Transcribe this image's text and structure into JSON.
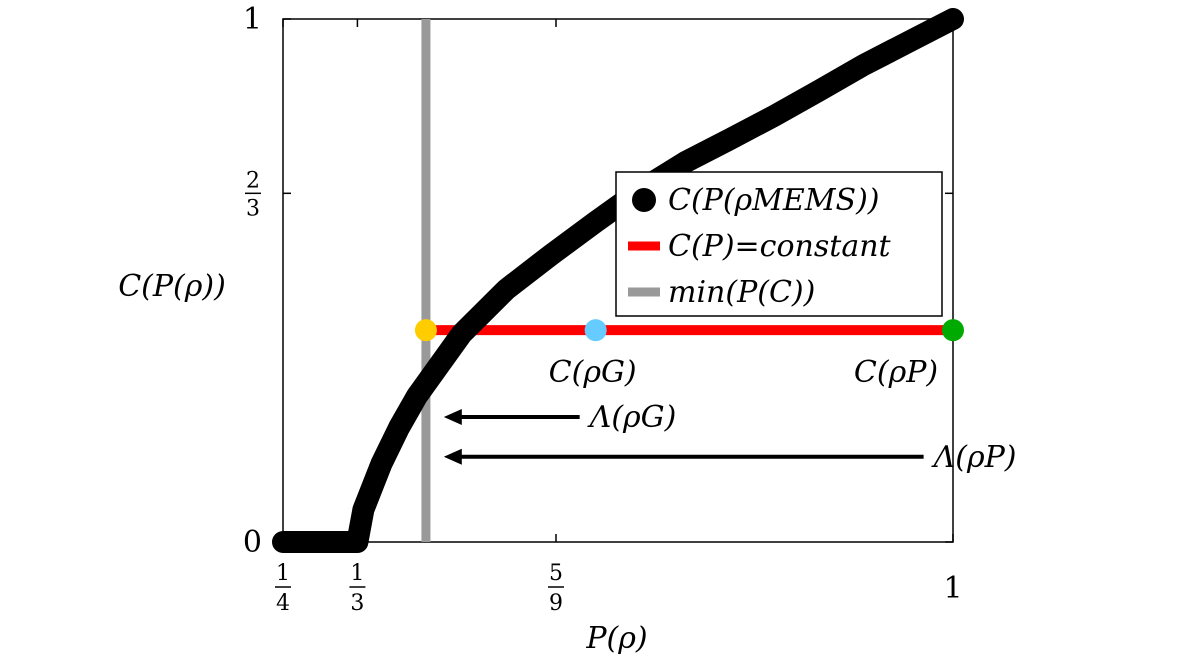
{
  "chart_data": {
    "type": "line",
    "xlim": [
      0.25,
      1
    ],
    "ylim": [
      0,
      1
    ],
    "xlabel": "P(ρ)",
    "ylabel": "C(P(ρ))",
    "x_ticks": [
      {
        "value": 0.25,
        "num": "1",
        "den": "4"
      },
      {
        "value": 0.3333,
        "num": "1",
        "den": "3"
      },
      {
        "value": 0.5556,
        "num": "5",
        "den": "9"
      },
      {
        "value": 1,
        "label": "1"
      }
    ],
    "y_ticks": [
      {
        "value": 0,
        "label": "0"
      },
      {
        "value": 0.6667,
        "num": "2",
        "den": "3"
      },
      {
        "value": 1,
        "label": "1"
      }
    ],
    "legend": {
      "position": "center-right",
      "entries": [
        {
          "label": "C(P(ρMEMS))",
          "style": "dot",
          "color": "#000000"
        },
        {
          "label": "C(P)=constant",
          "style": "line",
          "color": "#ff0000"
        },
        {
          "label": "min(P(C))",
          "style": "line",
          "color": "#999999"
        }
      ]
    },
    "series": [
      {
        "name": "C(P(ρMEMS))",
        "color": "#000000",
        "x": [
          0.25,
          0.3333,
          0.34,
          0.36,
          0.38,
          0.4,
          0.45,
          0.5,
          0.55,
          0.6,
          0.65,
          0.7,
          0.75,
          0.8,
          0.85,
          0.9,
          0.95,
          1.0
        ],
        "y": [
          0,
          0,
          0.062,
          0.149,
          0.219,
          0.279,
          0.398,
          0.483,
          0.549,
          0.612,
          0.673,
          0.726,
          0.77,
          0.815,
          0.863,
          0.912,
          0.956,
          1.0
        ]
      },
      {
        "name": "C(P)=constant",
        "color": "#ff0000",
        "x": [
          0.41,
          1.0
        ],
        "y": [
          0.405,
          0.405
        ]
      },
      {
        "name": "min(P(C))",
        "color": "#999999",
        "x_constant": 0.41
      }
    ],
    "markers": [
      {
        "x": 0.41,
        "y": 0.405,
        "color": "#ffcc00"
      },
      {
        "x": 0.6,
        "y": 0.405,
        "color": "#66ccff",
        "label": "C(ρG)"
      },
      {
        "x": 1.0,
        "y": 0.405,
        "color": "#00aa00",
        "label": "C(ρP)"
      }
    ],
    "arrows": [
      {
        "label": "Λ(ρG)",
        "y": 0.239,
        "x_from": 0.6,
        "x_to": 0.43
      },
      {
        "label": "Λ(ρP)",
        "y": 0.163,
        "x_from": 0.985,
        "x_to": 0.43
      }
    ]
  }
}
